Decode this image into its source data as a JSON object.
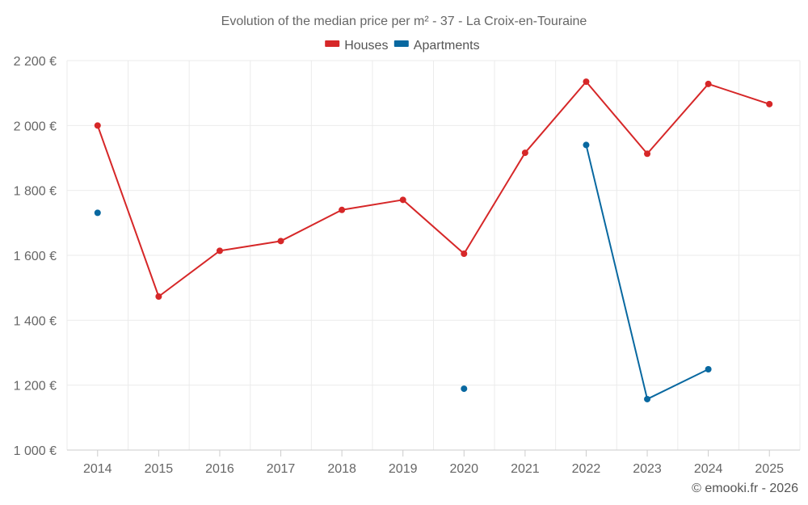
{
  "chart_data": {
    "type": "line",
    "title": "Evolution of the median price per m² - 37 - La Croix-en-Touraine",
    "categories": [
      "2014",
      "2015",
      "2016",
      "2017",
      "2018",
      "2019",
      "2020",
      "2021",
      "2022",
      "2023",
      "2024",
      "2025"
    ],
    "series": [
      {
        "name": "Houses",
        "color": "#d62728",
        "values": [
          2000,
          1473,
          1614,
          1644,
          1740,
          1771,
          1605,
          1916,
          2135,
          1913,
          2128,
          2066
        ]
      },
      {
        "name": "Apartments",
        "color": "#0868a0",
        "values": [
          1731,
          null,
          null,
          null,
          null,
          null,
          1189,
          null,
          1940,
          1157,
          1249,
          null
        ]
      }
    ],
    "ylim": [
      1000,
      2200
    ],
    "yticks": [
      1000,
      1200,
      1400,
      1600,
      1800,
      2000,
      2200
    ],
    "ytick_labels": [
      "1 000 €",
      "1 200 €",
      "1 400 €",
      "1 600 €",
      "1 800 €",
      "2 000 €",
      "2 200 €"
    ],
    "xlabel": "",
    "ylabel": "",
    "grid": true,
    "legend_position": "top-center"
  },
  "credit": "© emooki.fr - 2026"
}
